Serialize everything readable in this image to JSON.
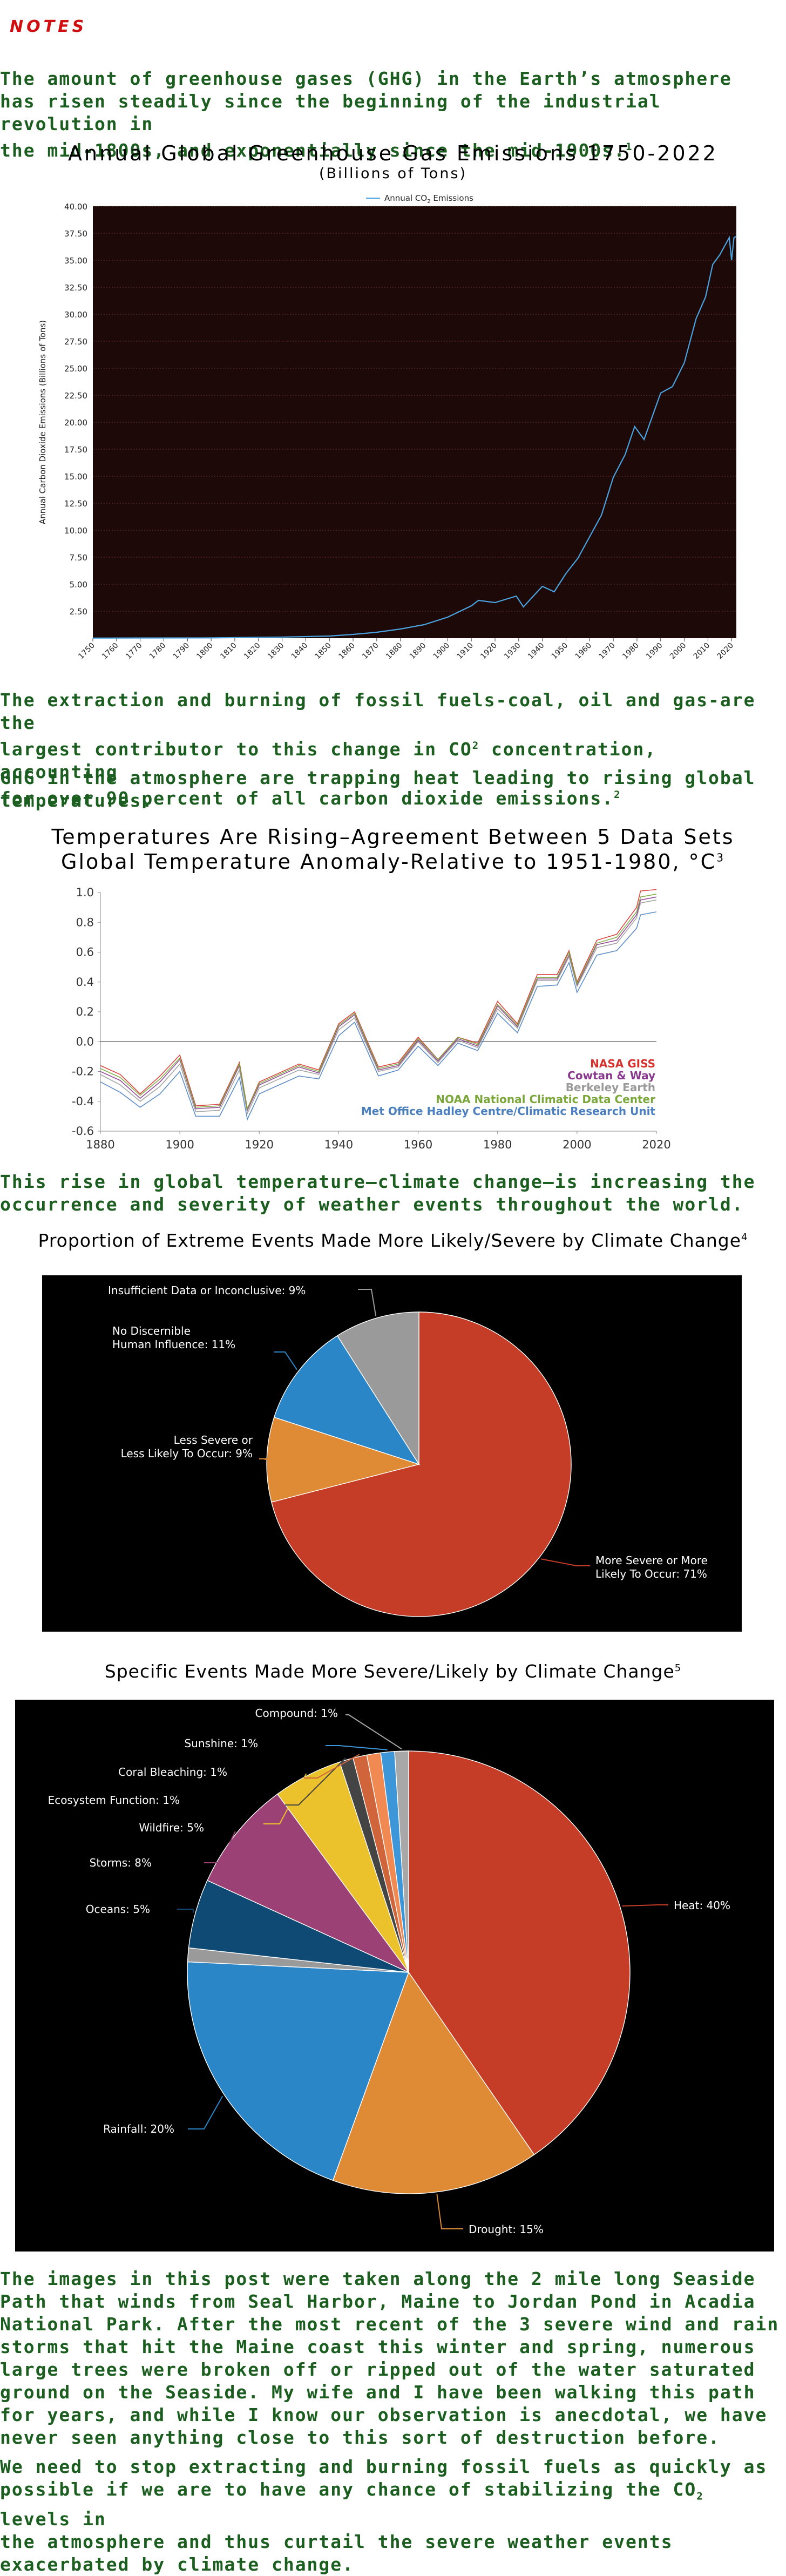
{
  "notes_label": "NOTES",
  "paragraphs": {
    "p1_lines": [
      "The amount of greenhouse gases (GHG) in the Earth’s atmosphere",
      "has risen steadily since the beginning of the industrial revolution in",
      "the mid-1800s, and exponentially since the mid-1900s."
    ],
    "p1_ref": "1",
    "p2_lines": [
      "The extraction and burning of fossil fuels-coal, oil and gas-are the",
      "largest contributor to this change in CO",
      " concentration, accounting",
      "for over 90 percent of all carbon dioxide emissions."
    ],
    "p2_sup": "2",
    "p2_ref": "2",
    "p3_lines": [
      "GHG in the atmosphere are trapping heat leading to rising global",
      "temperatures."
    ],
    "p4_lines": [
      "This rise in global temperature–climate change–is increasing the",
      "occurrence and severity of weather events throughout the world."
    ],
    "p5_lines": [
      "The images in this post were taken along the 2 mile long Seaside",
      "Path that winds from Seal Harbor, Maine to Jordan Pond in Acadia",
      "National Park.  After the most recent of the 3 severe wind and rain",
      "storms that hit the Maine coast this winter and spring, numerous",
      "large trees were broken off or ripped out of the water saturated",
      "ground on the Seaside.  My wife and I have been walking this path",
      "for years, and while I know our observation is anecdotal, we have",
      "never seen anything close to this sort of destruction before."
    ],
    "p6_lines": [
      "We need to stop extracting and burning fossil fuels as quickly as",
      "possible if we are to have any chance of stabilizing the CO",
      " levels in",
      "the atmosphere and thus curtail the severe weather events",
      "exacerbated by climate change."
    ],
    "p6_sub": "2"
  },
  "chart_data": [
    {
      "type": "line",
      "title": "Annual Global Greenhouse Gas Emissions 1750-2022",
      "subtitle": "(Billions of Tons)",
      "ylabel": "Annual Carbon Dioxide Emissions (Billions of Tons)",
      "xlabel": "",
      "legend": "Annual CO",
      "legend_sub": "2",
      "legend_tail": " Emissions",
      "legend_position": "top-center",
      "background": "#1e0909",
      "line_color": "#4aa3df",
      "ylim": [
        0,
        40
      ],
      "xlim": [
        1750,
        2022
      ],
      "yticks": [
        "2.50",
        "5.00",
        "7.50",
        "10.00",
        "12.50",
        "15.00",
        "17.50",
        "20.00",
        "22.50",
        "25.00",
        "27.50",
        "30.00",
        "32.50",
        "35.00",
        "37.50",
        "40.00"
      ],
      "ytick_values": [
        2.5,
        5,
        7.5,
        10,
        12.5,
        15,
        17.5,
        20,
        22.5,
        25,
        27.5,
        30,
        32.5,
        35,
        37.5,
        40
      ],
      "xticks": [
        "1750",
        "1760",
        "1770",
        "1780",
        "1790",
        "1800",
        "1810",
        "1820",
        "1830",
        "1840",
        "1850",
        "1860",
        "1870",
        "1880",
        "1890",
        "1900",
        "1910",
        "1920",
        "1930",
        "1940",
        "1950",
        "1960",
        "1970",
        "1980",
        "1990",
        "2000",
        "2010",
        "2020"
      ],
      "grid": true,
      "x": [
        1750,
        1800,
        1830,
        1850,
        1860,
        1870,
        1880,
        1890,
        1900,
        1910,
        1913,
        1920,
        1929,
        1932,
        1940,
        1945,
        1950,
        1955,
        1960,
        1965,
        1970,
        1975,
        1979,
        1983,
        1990,
        1995,
        2000,
        2005,
        2009,
        2012,
        2015,
        2019,
        2020,
        2021,
        2022
      ],
      "y": [
        0.01,
        0.03,
        0.1,
        0.2,
        0.35,
        0.55,
        0.85,
        1.25,
        1.95,
        3.0,
        3.5,
        3.3,
        3.9,
        2.9,
        4.8,
        4.3,
        6.0,
        7.4,
        9.4,
        11.4,
        14.9,
        17.0,
        19.6,
        18.4,
        22.7,
        23.3,
        25.5,
        29.6,
        31.6,
        34.6,
        35.5,
        37.1,
        35.0,
        37.1,
        37.2
      ]
    },
    {
      "type": "line",
      "title": "Temperatures Are Rising–Agreement Between 5 Data Sets",
      "subtitle": "Global Temperature Anomaly-Relative to 1951-1980, °C",
      "subtitle_ref": "3",
      "xlim": [
        1880,
        2020
      ],
      "ylim": [
        -0.6,
        1.0
      ],
      "yticks": [
        "1.0",
        "0.8",
        "0.6",
        "0.4",
        "0.2",
        "0.0",
        "-0.2",
        "-0.4",
        "-0.6"
      ],
      "ytick_values": [
        1.0,
        0.8,
        0.6,
        0.4,
        0.2,
        0.0,
        -0.2,
        -0.4,
        -0.6
      ],
      "xticks": [
        "1880",
        "1900",
        "1920",
        "1940",
        "1960",
        "1980",
        "2000",
        "2020"
      ],
      "legend_position": "bottom-right",
      "x": [
        1880,
        1885,
        1890,
        1895,
        1900,
        1904,
        1910,
        1915,
        1917,
        1920,
        1925,
        1930,
        1935,
        1940,
        1944,
        1950,
        1955,
        1960,
        1965,
        1970,
        1975,
        1980,
        1985,
        1990,
        1995,
        1998,
        2000,
        2005,
        2010,
        2015,
        2016,
        2020
      ],
      "series": [
        {
          "name": "NASA GISS",
          "color": "#d6322d",
          "values": [
            -0.16,
            -0.22,
            -0.35,
            -0.23,
            -0.09,
            -0.43,
            -0.42,
            -0.14,
            -0.45,
            -0.27,
            -0.21,
            -0.15,
            -0.19,
            0.12,
            0.2,
            -0.17,
            -0.14,
            0.03,
            -0.12,
            0.03,
            -0.01,
            0.27,
            0.12,
            0.45,
            0.45,
            0.61,
            0.4,
            0.68,
            0.72,
            0.9,
            1.01,
            1.02
          ]
        },
        {
          "name": "Cowtan & Way",
          "color": "#8a3a8e",
          "values": [
            -0.2,
            -0.26,
            -0.38,
            -0.27,
            -0.12,
            -0.45,
            -0.44,
            -0.16,
            -0.46,
            -0.29,
            -0.23,
            -0.17,
            -0.21,
            0.1,
            0.18,
            -0.19,
            -0.16,
            0.01,
            -0.13,
            0.02,
            -0.03,
            0.24,
            0.1,
            0.42,
            0.42,
            0.58,
            0.38,
            0.65,
            0.68,
            0.85,
            0.95,
            0.97
          ]
        },
        {
          "name": "Berkeley Earth",
          "color": "#9a9a9a",
          "values": [
            -0.22,
            -0.29,
            -0.4,
            -0.3,
            -0.15,
            -0.47,
            -0.46,
            -0.19,
            -0.48,
            -0.31,
            -0.25,
            -0.19,
            -0.22,
            0.08,
            0.16,
            -0.2,
            -0.17,
            0.0,
            -0.14,
            0.01,
            -0.04,
            0.22,
            0.09,
            0.41,
            0.41,
            0.57,
            0.37,
            0.63,
            0.66,
            0.83,
            0.93,
            0.95
          ]
        },
        {
          "name": "NOAA National Climatic Data Center",
          "color": "#7aa63a",
          "values": [
            -0.18,
            -0.24,
            -0.36,
            -0.25,
            -0.11,
            -0.44,
            -0.43,
            -0.15,
            -0.45,
            -0.28,
            -0.22,
            -0.16,
            -0.2,
            0.11,
            0.19,
            -0.18,
            -0.15,
            0.02,
            -0.12,
            0.03,
            -0.02,
            0.25,
            0.11,
            0.43,
            0.43,
            0.6,
            0.39,
            0.66,
            0.7,
            0.87,
            0.97,
            0.99
          ]
        },
        {
          "name": "Met Office Hadley Centre/Climatic Research Unit",
          "color": "#4a7fc0",
          "values": [
            -0.27,
            -0.34,
            -0.44,
            -0.35,
            -0.2,
            -0.5,
            -0.5,
            -0.24,
            -0.52,
            -0.35,
            -0.29,
            -0.23,
            -0.25,
            0.04,
            0.13,
            -0.23,
            -0.19,
            -0.03,
            -0.16,
            -0.01,
            -0.06,
            0.19,
            0.06,
            0.37,
            0.38,
            0.53,
            0.33,
            0.58,
            0.61,
            0.76,
            0.85,
            0.87
          ]
        }
      ]
    },
    {
      "type": "pie",
      "title": "Proportion of Extreme Events Made More Likely/Severe by Climate Change",
      "title_ref": "4",
      "background": "#000000",
      "slices": [
        {
          "label": "More Severe or More Likely To Occur:  71%",
          "label_lines": [
            "More Severe or More",
            "Likely To Occur:  71%"
          ],
          "value": 71,
          "color": "#c63d27"
        },
        {
          "label": "Less Severe or Less Likely To Occur:  9%",
          "label_lines": [
            "Less Severe or",
            "Less Likely To Occur:  9%"
          ],
          "value": 9,
          "color": "#df8b35"
        },
        {
          "label": "No Discernible Human Influence:  11%",
          "label_lines": [
            "No Discernible",
            "Human Influence:  11%"
          ],
          "value": 11,
          "color": "#2b86c8"
        },
        {
          "label": "Insufficient Data or Inconclusive: 9%",
          "label_lines": [
            "Insufficient Data or Inconclusive: 9%"
          ],
          "value": 9,
          "color": "#9a9a9a"
        }
      ]
    },
    {
      "type": "pie",
      "title": "Specific Events Made More Severe/Likely by Climate Change",
      "title_ref": "5",
      "background": "#000000",
      "slices": [
        {
          "label": "Heat:  40%",
          "value": 40,
          "color": "#c63d27"
        },
        {
          "label": "Drought:  15%",
          "value": 15,
          "color": "#df8b35"
        },
        {
          "label": "Rainfall:  20%",
          "value": 20,
          "color": "#2b86c8"
        },
        {
          "label": "",
          "value": 1,
          "color": "#9a9a9a"
        },
        {
          "label": "Oceans:  5%",
          "value": 5,
          "color": "#0e4a74"
        },
        {
          "label": "Storms:  8%",
          "value": 8,
          "color": "#9b4175"
        },
        {
          "label": "Wildfire:  5%",
          "value": 5,
          "color": "#ebc12c"
        },
        {
          "label": "Ecosystem Function:  1%",
          "value": 1,
          "color": "#444444"
        },
        {
          "label": "Coral Bleaching:  1%",
          "value": 1,
          "color": "#d0643b"
        },
        {
          "label": "",
          "value": 1,
          "color": "#f08a52"
        },
        {
          "label": "Sunshine:  1%",
          "value": 1,
          "color": "#3d96d8"
        },
        {
          "label": "Compound:  1%",
          "value": 1,
          "color": "#a8a8a8"
        }
      ]
    }
  ]
}
